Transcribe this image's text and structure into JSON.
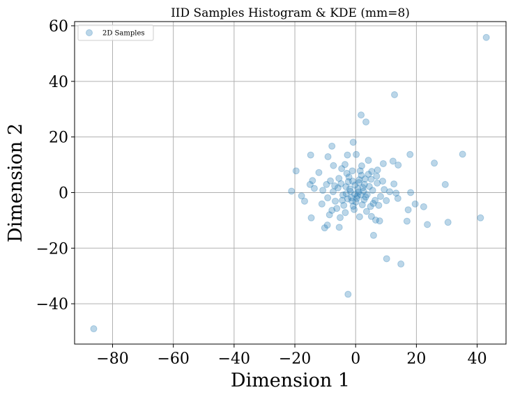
{
  "chart_data": {
    "type": "scatter",
    "title": "IID Samples Histogram & KDE (mm=8)",
    "xlabel": "Dimension 1",
    "ylabel": "Dimension 2",
    "xlim": [
      -92.5,
      49.5
    ],
    "ylim": [
      -54.5,
      61.5
    ],
    "xticks": [
      -80,
      -60,
      -40,
      -20,
      0,
      20,
      40
    ],
    "yticks": [
      -40,
      -20,
      0,
      20,
      40,
      60
    ],
    "xtick_labels": [
      "−80",
      "−60",
      "−40",
      "−20",
      "0",
      "20",
      "40"
    ],
    "ytick_labels": [
      "−40",
      "−20",
      "0",
      "20",
      "40",
      "60"
    ],
    "grid": true,
    "legend_position": "top-left",
    "color": "#1f77b4",
    "alpha": 0.3,
    "series": [
      {
        "name": "2D Samples",
        "points": [
          [
            -86.2,
            -49.0
          ],
          [
            43.0,
            55.8
          ],
          [
            12.8,
            35.2
          ],
          [
            1.8,
            27.9
          ],
          [
            3.4,
            25.4
          ],
          [
            -0.8,
            18.1
          ],
          [
            -7.8,
            16.7
          ],
          [
            35.2,
            13.8
          ],
          [
            17.9,
            13.7
          ],
          [
            -14.8,
            13.5
          ],
          [
            -9.1,
            12.9
          ],
          [
            -2.7,
            13.5
          ],
          [
            0.2,
            13.7
          ],
          [
            25.9,
            10.6
          ],
          [
            4.2,
            11.6
          ],
          [
            12.3,
            11.3
          ],
          [
            14.0,
            9.9
          ],
          [
            -19.6,
            7.8
          ],
          [
            -12.1,
            7.2
          ],
          [
            -15.0,
            2.9
          ],
          [
            -14.2,
            4.3
          ],
          [
            -13.6,
            1.5
          ],
          [
            -17.8,
            -1.2
          ],
          [
            -16.8,
            -3.1
          ],
          [
            -21.1,
            0.5
          ],
          [
            -14.6,
            -9.1
          ],
          [
            -10.2,
            -12.7
          ],
          [
            -9.3,
            -11.7
          ],
          [
            -5.4,
            -12.5
          ],
          [
            -2.5,
            -36.6
          ],
          [
            5.9,
            -15.4
          ],
          [
            10.2,
            -23.8
          ],
          [
            14.9,
            -25.7
          ],
          [
            23.6,
            -11.5
          ],
          [
            30.4,
            -10.7
          ],
          [
            41.1,
            -9.1
          ],
          [
            29.5,
            2.9
          ],
          [
            22.4,
            -5.1
          ],
          [
            19.6,
            -4.1
          ],
          [
            17.3,
            -6.2
          ],
          [
            16.9,
            -10.3
          ],
          [
            18.1,
            0.0
          ],
          [
            13.3,
            -0.2
          ],
          [
            13.9,
            -2.1
          ],
          [
            12.6,
            3.1
          ],
          [
            9.1,
            10.4
          ],
          [
            7.2,
            8.1
          ],
          [
            -7.3,
            9.7
          ],
          [
            -4.6,
            8.6
          ],
          [
            -3.5,
            10.1
          ],
          [
            -1.1,
            7.8
          ],
          [
            2.0,
            9.6
          ],
          [
            5.3,
            7.6
          ],
          [
            -11.1,
            -4.1
          ],
          [
            -8.6,
            -8.0
          ],
          [
            7.9,
            -10.2
          ],
          [
            6.6,
            -9.9
          ],
          [
            5.2,
            -8.6
          ],
          [
            -5.1,
            -9.0
          ],
          [
            1.3,
            -8.7
          ],
          [
            -3.2,
            2.1
          ],
          [
            -1.7,
            0.4
          ],
          [
            0.6,
            -1.2
          ],
          [
            2.4,
            1.8
          ],
          [
            3.8,
            -0.7
          ],
          [
            -2.6,
            -2.3
          ],
          [
            1.1,
            3.6
          ],
          [
            4.5,
            2.2
          ],
          [
            -4.2,
            -0.9
          ],
          [
            0.1,
            -3.4
          ],
          [
            2.8,
            -2.6
          ],
          [
            -1.0,
            4.1
          ],
          [
            5.6,
            0.8
          ],
          [
            -5.8,
            1.7
          ],
          [
            3.1,
            4.9
          ],
          [
            -3.9,
            -4.6
          ],
          [
            6.4,
            -2.8
          ],
          [
            -6.7,
            -3.1
          ],
          [
            1.9,
            6.2
          ],
          [
            -2.2,
            5.6
          ],
          [
            4.9,
            -5.0
          ],
          [
            -0.5,
            -6.1
          ],
          [
            7.1,
            3.4
          ],
          [
            -7.4,
            0.3
          ],
          [
            8.2,
            -1.4
          ],
          [
            -8.3,
            4.2
          ],
          [
            0.9,
            0.2
          ],
          [
            -1.4,
            -1.8
          ],
          [
            2.2,
            -4.4
          ],
          [
            -4.8,
            3.2
          ],
          [
            5.1,
            4.8
          ],
          [
            -6.2,
            -5.7
          ],
          [
            3.6,
            -6.8
          ],
          [
            -2.9,
            6.9
          ],
          [
            6.9,
            5.9
          ],
          [
            -9.2,
            -1.9
          ],
          [
            9.4,
            1.1
          ],
          [
            -3.4,
            -7.2
          ],
          [
            1.5,
            7.8
          ],
          [
            -5.5,
            5.1
          ],
          [
            4.2,
            6.6
          ],
          [
            -0.2,
            2.7
          ],
          [
            0.4,
            -2.1
          ],
          [
            -1.9,
            1.3
          ],
          [
            2.6,
            0.5
          ],
          [
            -3.1,
            -0.4
          ],
          [
            3.3,
            -1.6
          ],
          [
            -0.8,
            -4.9
          ],
          [
            1.2,
            4.6
          ],
          [
            -4.4,
            -2.8
          ],
          [
            5.8,
            -3.9
          ],
          [
            -6.9,
            2.4
          ],
          [
            7.6,
            -4.6
          ],
          [
            -7.8,
            -6.4
          ],
          [
            8.9,
            4.1
          ],
          [
            -9.6,
            2.9
          ],
          [
            10.1,
            -2.9
          ],
          [
            -10.8,
            0.8
          ],
          [
            11.2,
            0.3
          ],
          [
            -2.4,
            3.9
          ],
          [
            2.9,
            2.9
          ],
          [
            -0.3,
            -0.6
          ],
          [
            0.7,
            1.4
          ],
          [
            -1.2,
            -3.0
          ],
          [
            1.7,
            -0.8
          ]
        ]
      }
    ]
  }
}
